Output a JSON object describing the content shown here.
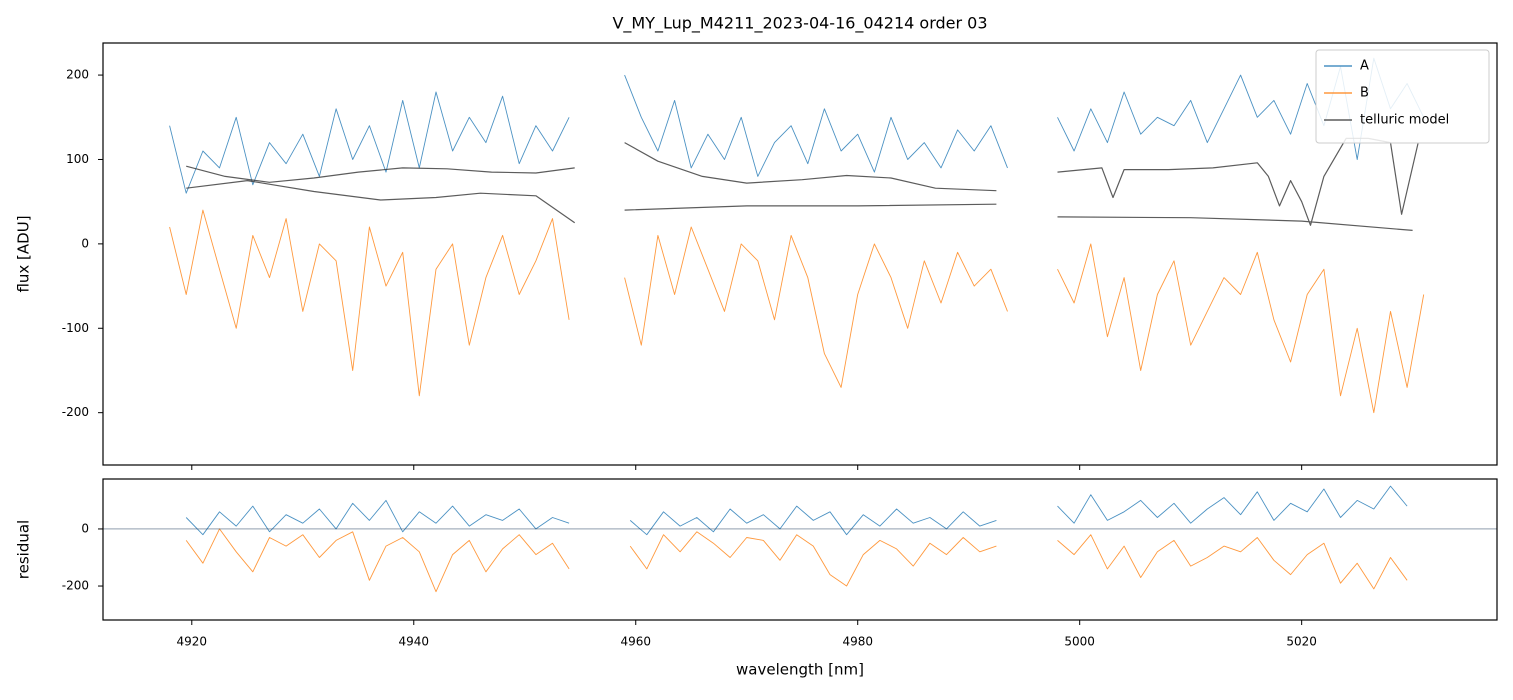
{
  "chart_data": [
    {
      "type": "line",
      "title": "V_MY_Lup_M4211_2023-04-16_04214  order 03",
      "y_label": "flux [ADU]",
      "legend": "upper right",
      "xlim": [
        4912,
        5037.6
      ],
      "ylim": [
        -262,
        238
      ],
      "xticks": [
        4920,
        4940,
        4960,
        4980,
        5000,
        5020
      ],
      "yticks": [
        -200,
        -100,
        0,
        100,
        200
      ],
      "x": [
        4918,
        4919.5,
        4921,
        4922.5,
        4924,
        4925.5,
        4927,
        4928.5,
        4930,
        4931.5,
        4933,
        4934.5,
        4936,
        4937.5,
        4939,
        4940.5,
        4942,
        4943.5,
        4945,
        4946.5,
        4948,
        4949.5,
        4951,
        4952.5,
        4954,
        4956,
        4959,
        4960.5,
        4962,
        4963.5,
        4965,
        4966.5,
        4968,
        4969.5,
        4971,
        4972.5,
        4974,
        4975.5,
        4977,
        4978.5,
        4980,
        4981.5,
        4983,
        4984.5,
        4986,
        4987.5,
        4989,
        4990.5,
        4992,
        4993.5,
        4996,
        4998,
        4999.5,
        5001,
        5002.5,
        5004,
        5005.5,
        5007,
        5008.5,
        5010,
        5011.5,
        5013,
        5014.5,
        5016,
        5017.5,
        5019,
        5020.5,
        5022,
        5023.5,
        5025,
        5026.5,
        5028,
        5029.5,
        5031
      ],
      "series": [
        {
          "name": "A",
          "color": "#1f77b4",
          "values": [
            140,
            60,
            110,
            90,
            150,
            70,
            120,
            95,
            130,
            80,
            160,
            100,
            140,
            85,
            170,
            90,
            180,
            110,
            150,
            120,
            175,
            95,
            140,
            110,
            150,
            null,
            200,
            150,
            110,
            170,
            90,
            130,
            100,
            150,
            80,
            120,
            140,
            95,
            160,
            110,
            130,
            85,
            150,
            100,
            120,
            90,
            135,
            110,
            140,
            90,
            null,
            150,
            110,
            160,
            120,
            180,
            130,
            150,
            140,
            170,
            120,
            160,
            200,
            150,
            170,
            130,
            190,
            140,
            210,
            100,
            220,
            160,
            190,
            150
          ]
        },
        {
          "name": "B",
          "color": "#ff7f0e",
          "values": [
            20,
            -60,
            40,
            -30,
            -100,
            10,
            -40,
            30,
            -80,
            0,
            -20,
            -150,
            20,
            -50,
            -10,
            -180,
            -30,
            0,
            -120,
            -40,
            10,
            -60,
            -20,
            30,
            -90,
            null,
            -40,
            -120,
            10,
            -60,
            20,
            -30,
            -80,
            0,
            -20,
            -90,
            10,
            -40,
            -130,
            -170,
            -60,
            0,
            -40,
            -100,
            -20,
            -70,
            -10,
            -50,
            -30,
            -80,
            null,
            -30,
            -70,
            0,
            -110,
            -40,
            -150,
            -60,
            -20,
            -120,
            -80,
            -40,
            -60,
            -10,
            -90,
            -140,
            -60,
            -30,
            -180,
            -100,
            -200,
            -80,
            -170,
            -60
          ]
        },
        {
          "name": "telluric model",
          "color": "#333333",
          "x": [
            4919.5,
            4923,
            4927,
            4931,
            4935,
            4939,
            4943,
            4947,
            4951,
            4954.5,
            null,
            4919.5,
            4925,
            4931,
            4937,
            4942,
            4946,
            4951,
            4954.5,
            null,
            4959,
            4962,
            4966,
            4970,
            4975,
            4979,
            4983,
            4987,
            4992.5,
            null,
            4959,
            4970,
            4980,
            4992.5,
            null,
            4998,
            5002,
            5003,
            5004,
            5008,
            5012,
            5016,
            5017,
            5018,
            5019,
            5020,
            5020.8,
            5022,
            5024,
            5026,
            5028,
            5029,
            5030.5,
            null,
            4998,
            5010,
            5020,
            5030
          ],
          "values": [
            92,
            80,
            73,
            78,
            85,
            90,
            89,
            85,
            84,
            90,
            null,
            66,
            75,
            62,
            52,
            55,
            60,
            57,
            25,
            null,
            120,
            98,
            80,
            72,
            76,
            81,
            78,
            66,
            63,
            null,
            40,
            45,
            45,
            47,
            null,
            85,
            90,
            55,
            88,
            88,
            90,
            96,
            80,
            45,
            75,
            50,
            22,
            80,
            125,
            125,
            120,
            35,
            120,
            null,
            32,
            31,
            27,
            16
          ]
        }
      ]
    },
    {
      "type": "line",
      "y_label": "residual",
      "x_label": "wavelength [nm]",
      "xlim": [
        4912,
        5037.6
      ],
      "ylim": [
        -319,
        175
      ],
      "xticks": [
        4920,
        4940,
        4960,
        4980,
        5000,
        5020
      ],
      "yticks": [
        -200,
        0
      ],
      "hline": 0,
      "x": [
        4919.5,
        4921,
        4922.5,
        4924,
        4925.5,
        4927,
        4928.5,
        4930,
        4931.5,
        4933,
        4934.5,
        4936,
        4937.5,
        4939,
        4940.5,
        4942,
        4943.5,
        4945,
        4946.5,
        4948,
        4949.5,
        4951,
        4952.5,
        4954,
        4956.5,
        4959.5,
        4961,
        4962.5,
        4964,
        4965.5,
        4967,
        4968.5,
        4970,
        4971.5,
        4973,
        4974.5,
        4976,
        4977.5,
        4979,
        4980.5,
        4982,
        4983.5,
        4985,
        4986.5,
        4988,
        4989.5,
        4991,
        4992.5,
        4995.5,
        4998,
        4999.5,
        5001,
        5002.5,
        5004,
        5005.5,
        5007,
        5008.5,
        5010,
        5011.5,
        5013,
        5014.5,
        5016,
        5017.5,
        5019,
        5020.5,
        5022,
        5023.5,
        5025,
        5026.5,
        5028,
        5029.5
      ],
      "series": [
        {
          "name": "A",
          "color": "#1f77b4",
          "values": [
            40,
            -20,
            60,
            10,
            80,
            -10,
            50,
            20,
            70,
            0,
            90,
            30,
            100,
            -10,
            60,
            20,
            80,
            10,
            50,
            30,
            70,
            0,
            40,
            20,
            null,
            30,
            -20,
            60,
            10,
            40,
            -10,
            70,
            20,
            50,
            0,
            80,
            30,
            60,
            -20,
            50,
            10,
            70,
            20,
            40,
            0,
            60,
            10,
            30,
            null,
            80,
            20,
            120,
            30,
            60,
            100,
            40,
            90,
            20,
            70,
            110,
            50,
            130,
            30,
            90,
            60,
            140,
            40,
            100,
            70,
            150,
            80
          ]
        },
        {
          "name": "B",
          "color": "#ff7f0e",
          "values": [
            -40,
            -120,
            0,
            -80,
            -150,
            -30,
            -60,
            -20,
            -100,
            -40,
            -10,
            -180,
            -60,
            -30,
            -80,
            -220,
            -90,
            -40,
            -150,
            -70,
            -20,
            -90,
            -50,
            -140,
            null,
            -60,
            -140,
            -20,
            -80,
            -10,
            -50,
            -100,
            -30,
            -40,
            -110,
            -20,
            -60,
            -160,
            -200,
            -90,
            -40,
            -70,
            -130,
            -50,
            -90,
            -30,
            -80,
            -60,
            null,
            -40,
            -90,
            -20,
            -140,
            -60,
            -170,
            -80,
            -40,
            -130,
            -100,
            -60,
            -80,
            -30,
            -110,
            -160,
            -90,
            -50,
            -190,
            -120,
            -210,
            -100,
            -180
          ]
        }
      ]
    }
  ]
}
